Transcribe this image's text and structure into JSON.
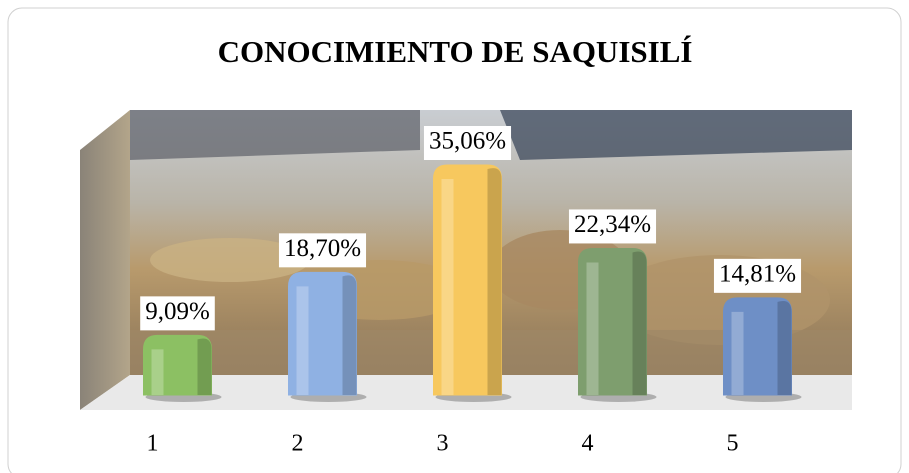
{
  "chart_data": {
    "type": "bar",
    "title": "CONOCIMIENTO DE SAQUISILÍ",
    "categories": [
      "1",
      "2",
      "3",
      "4",
      "5"
    ],
    "values": [
      9.09,
      18.7,
      35.06,
      22.34,
      14.81
    ],
    "value_labels": [
      "9,09%",
      "18,70%",
      "35,06%",
      "22,34%",
      "14,81%"
    ],
    "colors": [
      "#8cc063",
      "#8fb1e3",
      "#f7c85e",
      "#7e9e6e",
      "#6e8fc6"
    ]
  }
}
